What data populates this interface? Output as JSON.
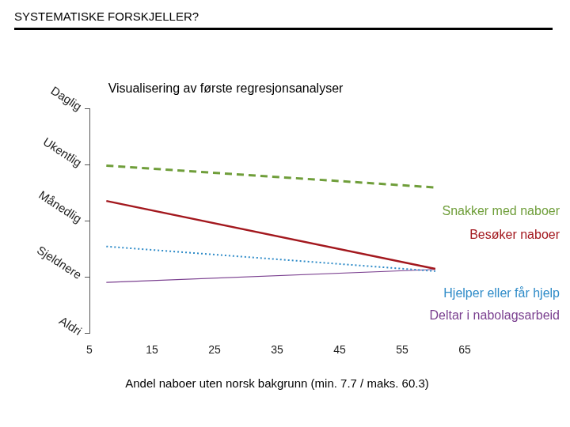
{
  "chart_data": {
    "type": "line",
    "title": "SYSTEMATISKE FORSKJELLER?",
    "subtitle": "Visualisering av første regresjonsanalyser",
    "x_label": "Andel naboer uten norsk bakgrunn (min. 7.7 / maks. 60.3)",
    "x": [
      7.7,
      60.3
    ],
    "series": [
      {
        "name": "Snakker med naboer",
        "color": "#6f9e3a",
        "line_style": "dashed",
        "values": [
          3.98,
          3.59
        ]
      },
      {
        "name": "Besøker naboer",
        "color": "#a3181e",
        "line_style": "solid",
        "values": [
          3.35,
          2.14
        ]
      },
      {
        "name": "Hjelper eller får hjelp",
        "color": "#2e8bc8",
        "line_style": "dotted",
        "values": [
          2.54,
          2.1
        ]
      },
      {
        "name": "Deltar i nabolagsarbeid",
        "color": "#7a3f8f",
        "line_style": "solid",
        "values": [
          1.9,
          2.13
        ]
      }
    ],
    "xlim": [
      5,
      65
    ],
    "xticks": [
      5,
      15,
      25,
      35,
      45,
      55,
      65
    ],
    "ylim": [
      1,
      5
    ],
    "yticks": [
      {
        "value": 1,
        "label": "Aldri"
      },
      {
        "value": 2,
        "label": "Sjeldnere"
      },
      {
        "value": 3,
        "label": "Månedlig"
      },
      {
        "value": 4,
        "label": "Ukentlig"
      },
      {
        "value": 5,
        "label": "Daglig"
      }
    ],
    "grid": false,
    "legend": "right"
  }
}
